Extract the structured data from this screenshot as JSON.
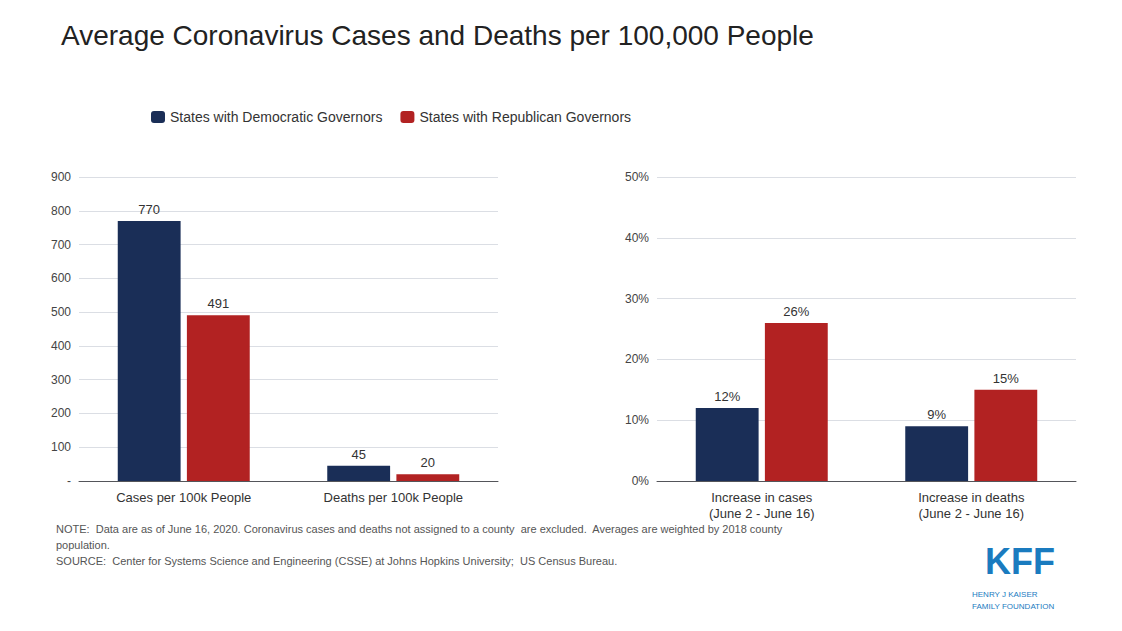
{
  "title": "Average Coronavirus Cases and Deaths per 100,000 People",
  "legend": "upper left",
  "annotations": [
    {
      "text": "NOTE:  Data are as of June 16, 2020. Coronavirus cases and deaths not assigned to a county  are excluded.  Averages are weighted by 2018 county"
    },
    {
      "text": "population."
    },
    {
      "text": "SOURCE:  Center for Systems Science and Engineering (CSSE) at Johns Hopkins University;  US Census Bureau."
    },
    {
      "text": "KFF",
      "color": "#1a7bbf"
    },
    {
      "text": "HENRY J KAISER\nFAMILY FOUNDATION",
      "color": "#1a7bbf"
    }
  ],
  "chart_data": [
    {
      "type": "bar",
      "categories": [
        "Cases per 100k People",
        "Deaths per 100k People"
      ],
      "series": [
        {
          "name": "States with Democratic Governors",
          "color": "#1a2e57",
          "values": [
            770,
            45
          ]
        },
        {
          "name": "States with Republican Governors",
          "color": "#b22222",
          "values": [
            491,
            20
          ]
        }
      ],
      "ylim": [
        0,
        900
      ],
      "yticks": [
        {
          "value": 0,
          "label": "-"
        },
        100,
        200,
        300,
        400,
        500,
        600,
        700,
        800,
        900
      ],
      "grid": true,
      "data_labels": true
    },
    {
      "type": "bar",
      "categories": [
        "Increase in cases\n(June 2 - June 16)",
        "Increase in deaths\n(June 2 - June 16)"
      ],
      "series": [
        {
          "name": "States with Democratic Governors",
          "color": "#1a2e57",
          "values": [
            12,
            9
          ],
          "value_labels": [
            "12%",
            "9%"
          ]
        },
        {
          "name": "States with Republican Governors",
          "color": "#b22222",
          "values": [
            26,
            15
          ],
          "value_labels": [
            "26%",
            "15%"
          ]
        }
      ],
      "ylim": [
        0,
        50
      ],
      "yticks": [
        {
          "value": 0,
          "label": "0%"
        },
        {
          "value": 10,
          "label": "10%"
        },
        {
          "value": 20,
          "label": "20%"
        },
        {
          "value": 30,
          "label": "30%"
        },
        {
          "value": 40,
          "label": "40%"
        },
        {
          "value": 50,
          "label": "50%"
        }
      ],
      "grid": true,
      "data_labels": true
    }
  ]
}
